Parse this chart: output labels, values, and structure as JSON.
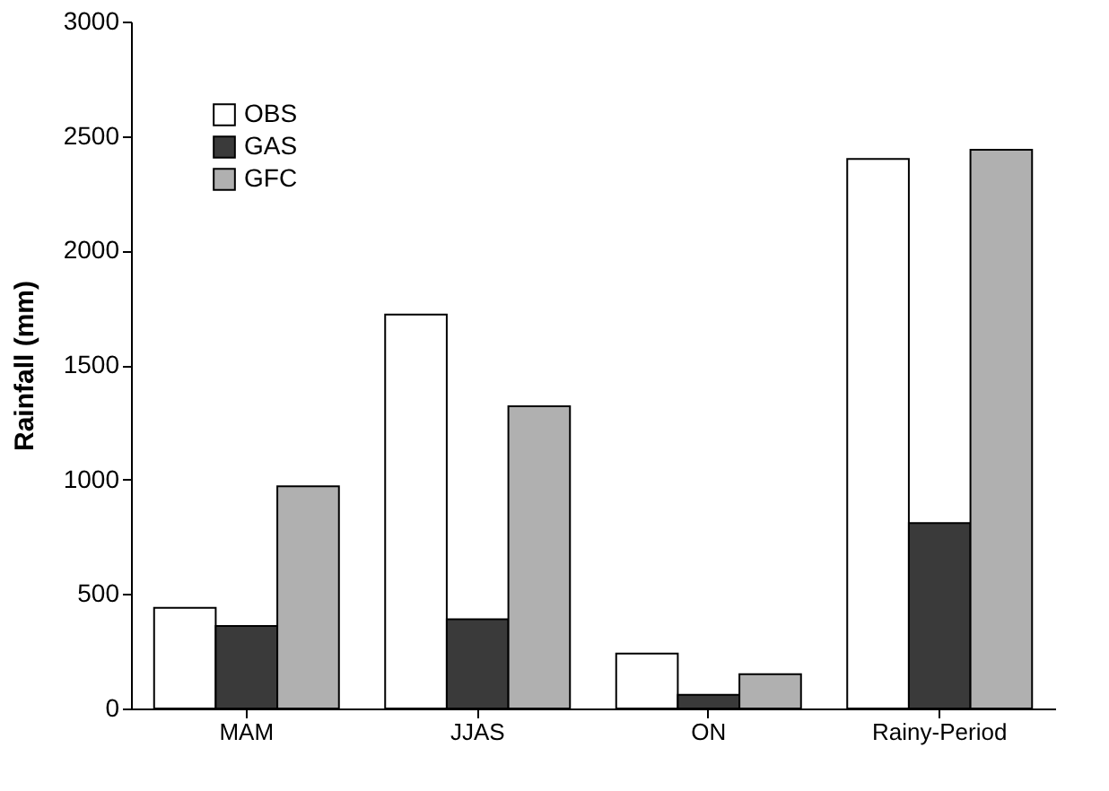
{
  "chart_data": {
    "type": "bar",
    "ylabel": "Rainfall (mm)",
    "categories": [
      "MAM",
      "JJAS",
      "ON",
      "Rainy-Period"
    ],
    "series": [
      {
        "name": "OBS",
        "color": "#ffffff",
        "values": [
          440,
          1720,
          240,
          2400
        ]
      },
      {
        "name": "GAS",
        "color": "#3a3a3a",
        "values": [
          360,
          390,
          60,
          810
        ]
      },
      {
        "name": "GFC",
        "color": "#b0b0b0",
        "values": [
          970,
          1320,
          150,
          2440
        ]
      }
    ],
    "ylim": [
      0,
      3000
    ],
    "yticks": [
      0,
      500,
      1000,
      1500,
      2000,
      2500,
      3000
    ],
    "grid": false,
    "legend": "top left"
  }
}
